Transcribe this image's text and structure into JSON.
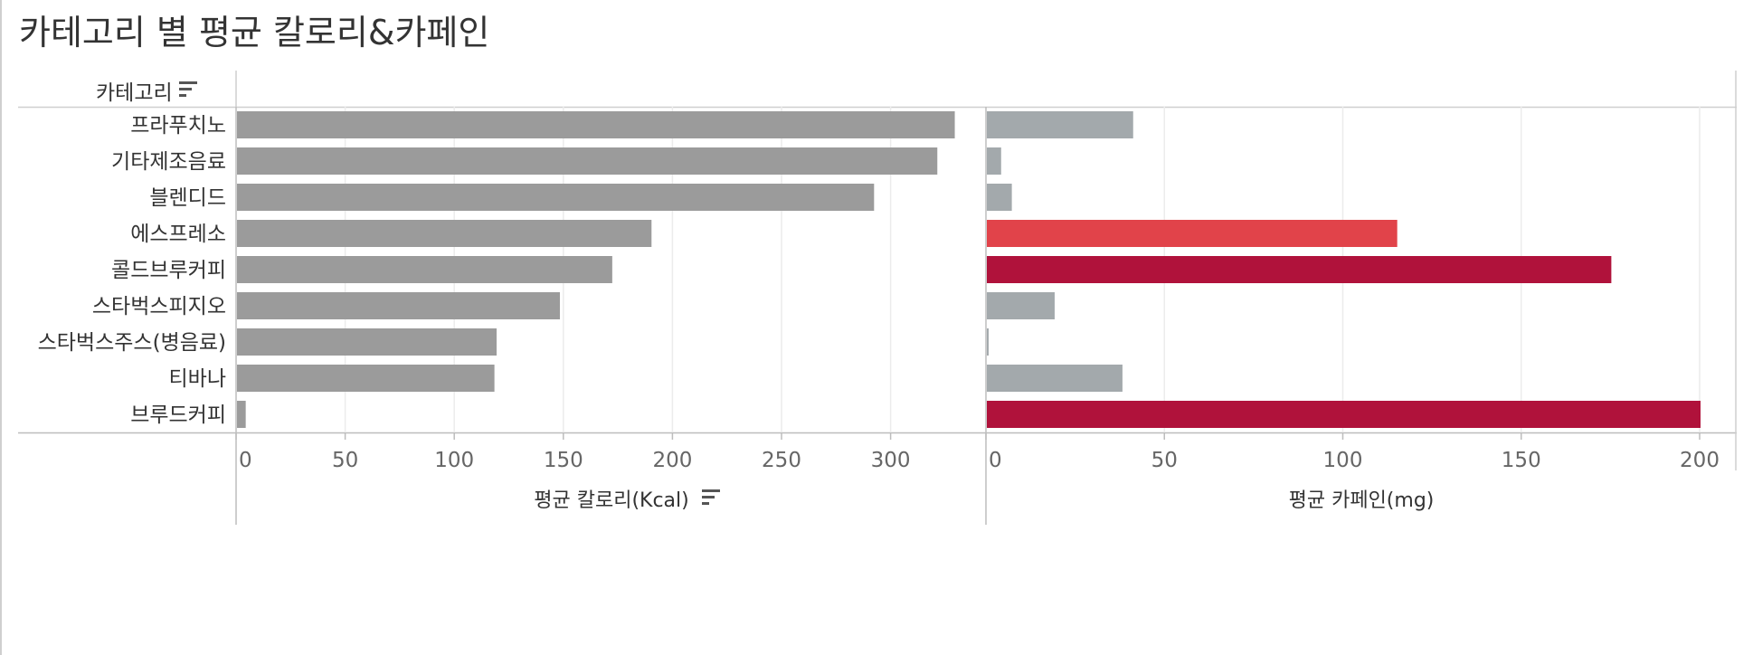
{
  "title": "카테고리 별 평균 칼로리&카페인",
  "row_header": {
    "label": "카테고리",
    "icon": "sort-icon"
  },
  "chart_data": [
    {
      "type": "bar",
      "orientation": "horizontal",
      "categories": [
        "프라푸치노",
        "기타제조음료",
        "블렌디드",
        "에스프레소",
        "콜드브루커피",
        "스타벅스피지오",
        "스타벅스주스(병음료)",
        "티바나",
        "브루드커피"
      ],
      "values": [
        329,
        321,
        292,
        190,
        172,
        148,
        119,
        118,
        4
      ],
      "xlabel": "평균 칼로리(Kcal)",
      "xlabel_icon": "sort-icon",
      "xlim": [
        0,
        340
      ],
      "xticks": [
        0,
        50,
        100,
        150,
        200,
        250,
        300
      ],
      "bar_color": "#9b9b9b",
      "grid": true
    },
    {
      "type": "bar",
      "orientation": "horizontal",
      "categories": [
        "프라푸치노",
        "기타제조음료",
        "블렌디드",
        "에스프레소",
        "콜드브루커피",
        "스타벅스피지오",
        "스타벅스주스(병음료)",
        "티바나",
        "브루드커피"
      ],
      "values": [
        41,
        4,
        7,
        115,
        175,
        19,
        0.5,
        38,
        200
      ],
      "xlabel": "평균 카페인(mg)",
      "xlim": [
        0,
        210
      ],
      "xticks": [
        0,
        50,
        100,
        150,
        200
      ],
      "grid": true,
      "color_scale": {
        "low": "#a3a9ac",
        "mid": "#e1434a",
        "high": "#b0123b"
      },
      "bar_colors": [
        "#a3a9ac",
        "#a3a9ac",
        "#a3a9ac",
        "#e1434a",
        "#b0123b",
        "#a3a9ac",
        "#a3a9ac",
        "#a3a9ac",
        "#b0123b"
      ]
    }
  ]
}
